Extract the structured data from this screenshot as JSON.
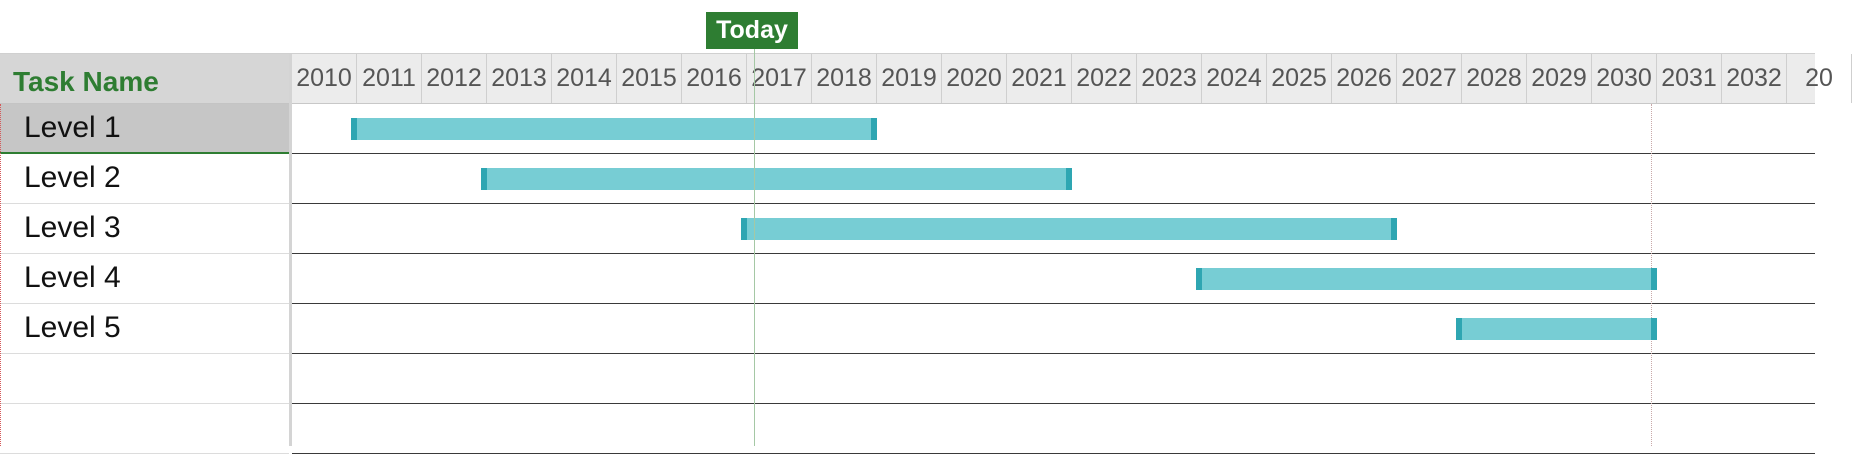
{
  "today_marker": {
    "label": "Today",
    "year": 2016.6
  },
  "grid": {
    "header": "Task Name",
    "rows": [
      {
        "label": "Level 1",
        "selected": true
      },
      {
        "label": "Level 2",
        "selected": false
      },
      {
        "label": "Level 3",
        "selected": false
      },
      {
        "label": "Level 4",
        "selected": false
      },
      {
        "label": "Level 5",
        "selected": false
      },
      {
        "label": "",
        "selected": false
      },
      {
        "label": "",
        "selected": false
      }
    ]
  },
  "timeline": {
    "years": [
      "2010",
      "2011",
      "2012",
      "2013",
      "2014",
      "2015",
      "2016",
      "2017",
      "2018",
      "2019",
      "2020",
      "2021",
      "2022",
      "2023",
      "2024",
      "2025",
      "2026",
      "2027",
      "2028",
      "2029",
      "2030",
      "2031",
      "2032",
      "20"
    ],
    "deadline_year": 2030.9
  },
  "tasks": [
    {
      "name": "Level 1",
      "start": 2010.9,
      "end": 2019.0
    },
    {
      "name": "Level 2",
      "start": 2012.9,
      "end": 2022.0
    },
    {
      "name": "Level 3",
      "start": 2016.9,
      "end": 2027.0
    },
    {
      "name": "Level 4",
      "start": 2023.9,
      "end": 2031.0
    },
    {
      "name": "Level 5",
      "start": 2027.9,
      "end": 2031.0
    }
  ],
  "colors": {
    "accent": "#2e7d32",
    "bar_fill": "#77cdd4",
    "bar_cap": "#2ea6b2",
    "header_bg": "#ececec"
  }
}
